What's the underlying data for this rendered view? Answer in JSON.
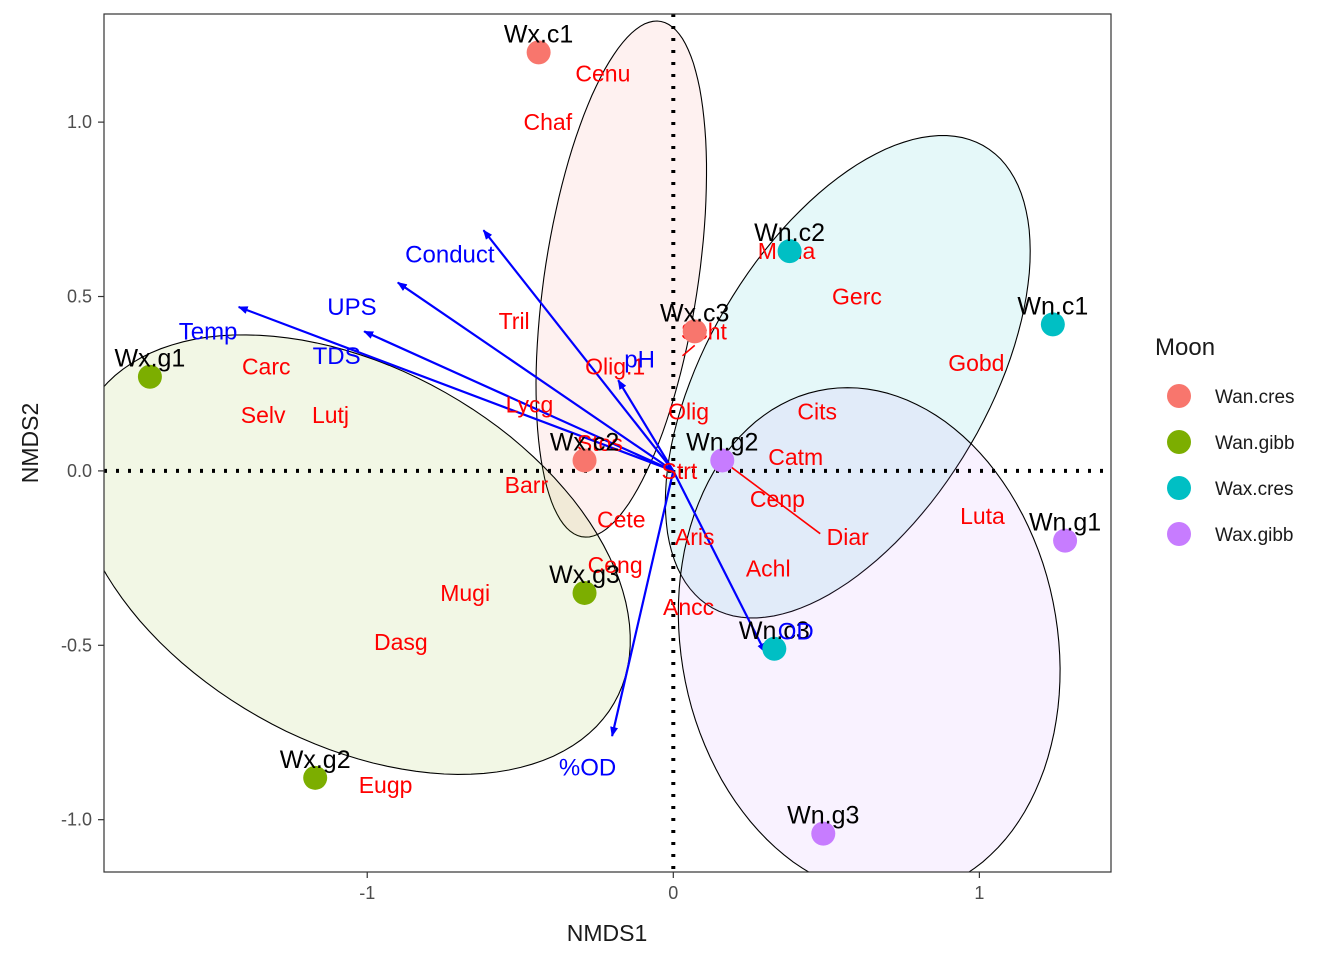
{
  "chart_data": {
    "type": "scatter",
    "xlabel": "NMDS1",
    "ylabel": "NMDS2",
    "xlim": [
      -1.86,
      1.43
    ],
    "ylim": [
      -1.15,
      1.31
    ],
    "x_ticks": [
      -1,
      0,
      1
    ],
    "y_ticks": [
      -1.0,
      -0.5,
      0.0,
      0.5,
      1.0
    ],
    "x_tick_labels": [
      "-1",
      "0",
      "1"
    ],
    "y_tick_labels": [
      "-1.0",
      "-0.5",
      "0.0",
      "0.5",
      "1.0"
    ],
    "grid": false,
    "legend": {
      "title": "Moon",
      "placement": "right",
      "entries": [
        {
          "name": "Wan.cres",
          "color": "#F8766D"
        },
        {
          "name": "Wan.gibb",
          "color": "#7CAE00"
        },
        {
          "name": "Wax.cres",
          "color": "#00BFC4"
        },
        {
          "name": "Wax.gibb",
          "color": "#C77CFF"
        }
      ]
    },
    "series": [
      {
        "name": "Wan.cres",
        "color": "#F8766D",
        "points": [
          {
            "label": "Wx.c1",
            "x": -0.44,
            "y": 1.2
          },
          {
            "label": "Wx.c2",
            "x": -0.29,
            "y": 0.03
          },
          {
            "label": "Wx.c3",
            "x": 0.07,
            "y": 0.4
          }
        ]
      },
      {
        "name": "Wan.gibb",
        "color": "#7CAE00",
        "points": [
          {
            "label": "Wx.g1",
            "x": -1.71,
            "y": 0.27
          },
          {
            "label": "Wx.g2",
            "x": -1.17,
            "y": -0.88
          },
          {
            "label": "Wx.g3",
            "x": -0.29,
            "y": -0.35
          }
        ]
      },
      {
        "name": "Wax.cres",
        "color": "#00BFC4",
        "points": [
          {
            "label": "Wn.c1",
            "x": 1.24,
            "y": 0.42
          },
          {
            "label": "Wn.c2",
            "x": 0.38,
            "y": 0.63
          },
          {
            "label": "Wn.c3",
            "x": 0.33,
            "y": -0.51
          }
        ]
      },
      {
        "name": "Wax.gibb",
        "color": "#C77CFF",
        "points": [
          {
            "label": "Wn.g1",
            "x": 1.28,
            "y": -0.2
          },
          {
            "label": "Wn.g2",
            "x": 0.16,
            "y": 0.03
          },
          {
            "label": "Wn.g3",
            "x": 0.49,
            "y": -1.04
          }
        ]
      }
    ],
    "ellipses": [
      {
        "group": "Wan.cres",
        "fill": "#F8766D",
        "cx": -0.17,
        "cy": 0.55,
        "rx": 0.75,
        "ry": 0.25,
        "angle_deg": 80
      },
      {
        "group": "Wan.gibb",
        "fill": "#7CAE00",
        "cx": -1.05,
        "cy": -0.24,
        "rx": 0.96,
        "ry": 0.55,
        "angle_deg": -23
      },
      {
        "group": "Wax.cres",
        "fill": "#00BFC4",
        "cx": 0.57,
        "cy": 0.27,
        "rx": 0.8,
        "ry": 0.44,
        "angle_deg": 53
      },
      {
        "group": "Wax.gibb",
        "fill": "#C77CFF",
        "cx": 0.64,
        "cy": -0.49,
        "rx": 0.74,
        "ry": 0.61,
        "angle_deg": -72
      }
    ],
    "reference_lines": {
      "x": 0,
      "y": 0,
      "style": "dotted"
    },
    "env_vectors": [
      {
        "label": "Conduct",
        "x": -0.62,
        "y": 0.69,
        "label_x": -0.73,
        "label_y": 0.62
      },
      {
        "label": "UPS",
        "x": -0.9,
        "y": 0.54,
        "label_x": -1.05,
        "label_y": 0.47
      },
      {
        "label": "Temp",
        "x": -1.42,
        "y": 0.47,
        "label_x": -1.52,
        "label_y": 0.4
      },
      {
        "label": "TDS",
        "x": -1.01,
        "y": 0.4,
        "label_x": -1.1,
        "label_y": 0.33
      },
      {
        "label": "pH",
        "x": -0.18,
        "y": 0.26,
        "label_x": -0.11,
        "label_y": 0.32
      },
      {
        "label": "OD",
        "x": 0.3,
        "y": -0.52,
        "label_x": 0.4,
        "label_y": -0.46
      },
      {
        "label": "%OD",
        "x": -0.2,
        "y": -0.76,
        "label_x": -0.28,
        "label_y": -0.85
      }
    ],
    "species": [
      {
        "label": "Cenu",
        "x": -0.23,
        "y": 1.14
      },
      {
        "label": "Chaf",
        "x": -0.41,
        "y": 1.0
      },
      {
        "label": "Mena",
        "x": 0.37,
        "y": 0.63
      },
      {
        "label": "Gerc",
        "x": 0.6,
        "y": 0.5
      },
      {
        "label": "Tril",
        "x": -0.52,
        "y": 0.43
      },
      {
        "label": "Scht",
        "x": 0.1,
        "y": 0.4
      },
      {
        "label": "Gobd",
        "x": 0.99,
        "y": 0.31
      },
      {
        "label": "Carc",
        "x": -1.33,
        "y": 0.3
      },
      {
        "label": "Olig.1",
        "x": -0.19,
        "y": 0.3
      },
      {
        "label": "Selv",
        "x": -1.34,
        "y": 0.16
      },
      {
        "label": "Lutj",
        "x": -1.12,
        "y": 0.16
      },
      {
        "label": "Lycg",
        "x": -0.47,
        "y": 0.19
      },
      {
        "label": "Olig",
        "x": 0.05,
        "y": 0.17
      },
      {
        "label": "Cits",
        "x": 0.47,
        "y": 0.17
      },
      {
        "label": "Stos",
        "x": -0.24,
        "y": 0.08
      },
      {
        "label": "Catm",
        "x": 0.4,
        "y": 0.04
      },
      {
        "label": "Barr",
        "x": -0.48,
        "y": -0.04
      },
      {
        "label": "Strt",
        "x": 0.02,
        "y": 0.0
      },
      {
        "label": "Cenp",
        "x": 0.34,
        "y": -0.08
      },
      {
        "label": "Luta",
        "x": 1.01,
        "y": -0.13
      },
      {
        "label": "Cete",
        "x": -0.17,
        "y": -0.14
      },
      {
        "label": "Diar",
        "x": 0.57,
        "y": -0.19
      },
      {
        "label": "Aris",
        "x": 0.07,
        "y": -0.19
      },
      {
        "label": "Ceng",
        "x": -0.19,
        "y": -0.27
      },
      {
        "label": "Achl",
        "x": 0.31,
        "y": -0.28
      },
      {
        "label": "Mugi",
        "x": -0.68,
        "y": -0.35
      },
      {
        "label": "Ancc",
        "x": 0.05,
        "y": -0.39
      },
      {
        "label": "Dasg",
        "x": -0.89,
        "y": -0.49
      },
      {
        "label": "Eugp",
        "x": -0.94,
        "y": -0.9
      }
    ],
    "species_leaders": [
      {
        "from_x": 0.0,
        "from_y": 0.0,
        "to_x": -0.35,
        "to_y": 0.21
      },
      {
        "from_x": 0.03,
        "from_y": 0.33,
        "to_x": 0.07,
        "to_y": 0.36
      },
      {
        "from_x": 0.16,
        "from_y": 0.03,
        "to_x": 0.48,
        "to_y": -0.18
      }
    ]
  }
}
